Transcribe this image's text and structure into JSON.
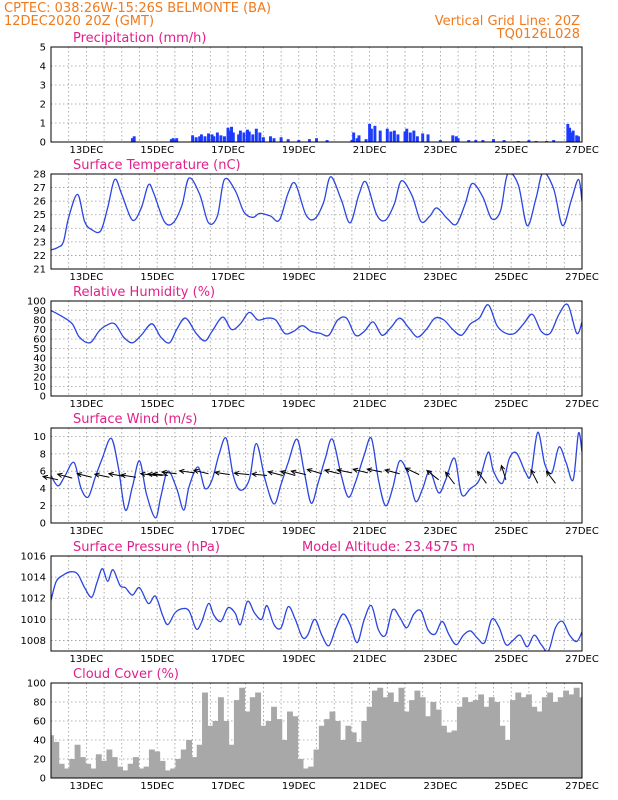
{
  "header": {
    "station": "CPTEC:   038:26W-15:26S   BELMONTE (BA)",
    "init_time": "12DEC2020 20Z (GMT)",
    "grid_note": "Vertical Grid Line: 20Z",
    "model_code": "TQ0126L028"
  },
  "colors": {
    "header": "#f07a1e",
    "panel_title": "#e0208a",
    "series_line": "#2b45e0",
    "precip_bar": "#1c3bff",
    "cloud_fill": "#a8a8a8"
  },
  "chart_data": [
    {
      "type": "bar",
      "title": "Precipitation (mm/h)",
      "x_range": [
        12.0,
        27.0
      ],
      "ylim": [
        0,
        5
      ],
      "yticks": [
        0,
        1,
        2,
        3,
        4,
        5
      ],
      "x_tick_labels": [
        "13DEC",
        "15DEC",
        "17DEC",
        "19DEC",
        "21DEC",
        "23DEC",
        "25DEC",
        "27DEC"
      ],
      "x": [
        14.3,
        14.35,
        15.4,
        15.45,
        15.5,
        15.55,
        16.0,
        16.1,
        16.2,
        16.25,
        16.35,
        16.45,
        16.55,
        16.6,
        16.7,
        16.8,
        16.9,
        17.0,
        17.05,
        17.1,
        17.15,
        17.3,
        17.35,
        17.45,
        17.55,
        17.6,
        17.7,
        17.8,
        17.9,
        18.0,
        18.2,
        18.3,
        18.5,
        18.7,
        19.0,
        19.3,
        19.5,
        19.8,
        20.5,
        20.55,
        20.65,
        20.7,
        20.9,
        21.0,
        21.05,
        21.15,
        21.3,
        21.5,
        21.6,
        21.7,
        21.8,
        22.0,
        22.05,
        22.15,
        22.25,
        22.35,
        22.5,
        22.65,
        23.0,
        23.35,
        23.45,
        23.5,
        23.8,
        24.0,
        24.2,
        24.5,
        24.8,
        25.2,
        25.5,
        25.7,
        26.0,
        26.2,
        26.6,
        26.65,
        26.7,
        26.75,
        26.85,
        26.9
      ],
      "values": [
        0.2,
        0.3,
        0.15,
        0.2,
        0.1,
        0.2,
        0.35,
        0.25,
        0.3,
        0.4,
        0.3,
        0.45,
        0.4,
        0.3,
        0.5,
        0.35,
        0.3,
        0.75,
        0.6,
        0.8,
        0.5,
        0.4,
        0.6,
        0.5,
        0.65,
        0.55,
        0.4,
        0.7,
        0.5,
        0.25,
        0.3,
        0.2,
        0.25,
        0.15,
        0.1,
        0.15,
        0.2,
        0.1,
        0.1,
        0.5,
        0.2,
        0.35,
        0.15,
        0.95,
        0.7,
        0.85,
        0.6,
        0.7,
        0.55,
        0.6,
        0.4,
        0.55,
        0.7,
        0.5,
        0.6,
        0.3,
        0.45,
        0.4,
        0.1,
        0.35,
        0.3,
        0.2,
        0.1,
        0.1,
        0.1,
        0.15,
        0.1,
        0.05,
        0.1,
        0.05,
        0.05,
        0.1,
        0.95,
        0.75,
        0.5,
        0.6,
        0.35,
        0.3
      ]
    },
    {
      "type": "line",
      "title": "Surface Temperature (nC)",
      "x_range": [
        12.0,
        27.0
      ],
      "ylim": [
        21,
        28
      ],
      "yticks": [
        21,
        22,
        23,
        24,
        25,
        26,
        27,
        28
      ],
      "x_tick_labels": [
        "13DEC",
        "15DEC",
        "17DEC",
        "19DEC",
        "21DEC",
        "23DEC",
        "25DEC",
        "27DEC"
      ],
      "x": [
        12.0,
        12.2,
        12.35,
        12.5,
        12.75,
        12.95,
        13.15,
        13.4,
        13.6,
        13.8,
        14.0,
        14.3,
        14.55,
        14.75,
        14.9,
        15.2,
        15.45,
        15.7,
        15.9,
        16.2,
        16.45,
        16.7,
        16.9,
        17.2,
        17.45,
        17.7,
        17.9,
        18.2,
        18.45,
        18.7,
        18.9,
        19.2,
        19.45,
        19.7,
        19.9,
        20.2,
        20.45,
        20.7,
        20.9,
        21.2,
        21.45,
        21.7,
        21.9,
        22.2,
        22.45,
        22.7,
        22.9,
        23.2,
        23.45,
        23.7,
        23.9,
        24.2,
        24.45,
        24.7,
        24.9,
        25.2,
        25.45,
        25.7,
        25.9,
        26.2,
        26.45,
        26.7,
        26.9,
        27.0
      ],
      "values": [
        22.4,
        22.6,
        23.0,
        24.8,
        26.5,
        24.5,
        23.9,
        23.8,
        25.5,
        27.6,
        26.5,
        24.6,
        25.5,
        27.2,
        26.6,
        24.5,
        24.4,
        25.7,
        27.7,
        26.5,
        24.4,
        24.9,
        27.6,
        26.8,
        25.2,
        24.8,
        25.1,
        24.9,
        24.6,
        26.6,
        27.3,
        25.0,
        24.7,
        25.9,
        27.8,
        26.1,
        24.4,
        26.5,
        27.4,
        25.0,
        24.6,
        25.8,
        27.5,
        26.4,
        24.5,
        24.9,
        25.5,
        24.7,
        24.3,
        25.8,
        27.3,
        26.3,
        24.7,
        25.3,
        28.0,
        27.2,
        24.2,
        26.2,
        28.1,
        26.9,
        24.2,
        26.1,
        27.6,
        26.0
      ]
    },
    {
      "type": "line",
      "title": "Relative Humidity (%)",
      "x_range": [
        12.0,
        27.0
      ],
      "ylim": [
        0,
        100
      ],
      "yticks": [
        0,
        10,
        20,
        30,
        40,
        50,
        60,
        70,
        80,
        90,
        100
      ],
      "x_tick_labels": [
        "13DEC",
        "15DEC",
        "17DEC",
        "19DEC",
        "21DEC",
        "23DEC",
        "25DEC",
        "27DEC"
      ],
      "x": [
        12.0,
        12.3,
        12.6,
        12.8,
        13.1,
        13.35,
        13.55,
        13.8,
        14.05,
        14.3,
        14.55,
        14.85,
        15.1,
        15.35,
        15.55,
        15.8,
        16.1,
        16.35,
        16.55,
        16.85,
        17.1,
        17.35,
        17.6,
        17.85,
        18.1,
        18.35,
        18.6,
        18.85,
        19.1,
        19.35,
        19.6,
        19.85,
        20.1,
        20.35,
        20.6,
        20.85,
        21.1,
        21.35,
        21.6,
        21.85,
        22.1,
        22.35,
        22.6,
        22.85,
        23.1,
        23.35,
        23.6,
        23.85,
        24.1,
        24.35,
        24.6,
        24.85,
        25.1,
        25.35,
        25.6,
        25.85,
        26.1,
        26.35,
        26.6,
        26.85,
        27.0
      ],
      "values": [
        90,
        84,
        76,
        62,
        56,
        68,
        74,
        76,
        62,
        56,
        64,
        76,
        62,
        56,
        70,
        82,
        66,
        58,
        68,
        83,
        70,
        76,
        88,
        80,
        82,
        80,
        66,
        68,
        74,
        68,
        66,
        64,
        80,
        82,
        64,
        68,
        78,
        64,
        72,
        82,
        72,
        62,
        70,
        82,
        80,
        70,
        64,
        76,
        82,
        96,
        74,
        66,
        66,
        76,
        86,
        68,
        66,
        86,
        96,
        66,
        78
      ]
    },
    {
      "type": "line",
      "title": "Surface Wind (m/s)",
      "x_range": [
        12.0,
        27.0
      ],
      "ylim": [
        0,
        11
      ],
      "yticks": [
        0,
        2,
        4,
        6,
        8,
        10
      ],
      "x_tick_labels": [
        "13DEC",
        "15DEC",
        "17DEC",
        "19DEC",
        "21DEC",
        "23DEC",
        "25DEC",
        "27DEC"
      ],
      "x": [
        12.0,
        12.2,
        12.4,
        12.65,
        12.85,
        13.05,
        13.25,
        13.45,
        13.7,
        13.9,
        14.1,
        14.3,
        14.5,
        14.7,
        14.95,
        15.1,
        15.3,
        15.55,
        15.75,
        15.9,
        16.15,
        16.35,
        16.55,
        16.75,
        16.95,
        17.15,
        17.35,
        17.6,
        17.8,
        18.05,
        18.3,
        18.5,
        18.7,
        18.95,
        19.15,
        19.35,
        19.55,
        19.75,
        19.95,
        20.2,
        20.4,
        20.6,
        20.85,
        21.05,
        21.25,
        21.45,
        21.65,
        21.85,
        22.1,
        22.3,
        22.5,
        22.7,
        22.95,
        23.15,
        23.4,
        23.6,
        23.85,
        24.1,
        24.35,
        24.5,
        24.75,
        24.95,
        25.15,
        25.4,
        25.55,
        25.75,
        25.95,
        26.15,
        26.35,
        26.55,
        26.75,
        26.9,
        27.0
      ],
      "values": [
        5.5,
        4.3,
        5.5,
        7.0,
        4.0,
        3.0,
        5.3,
        7.5,
        9.8,
        6.5,
        1.5,
        4.2,
        7.2,
        3.3,
        0.6,
        3.0,
        6.0,
        4.0,
        1.5,
        4.2,
        6.5,
        4.0,
        5.0,
        8.0,
        9.8,
        5.5,
        3.8,
        5.0,
        9.2,
        5.0,
        2.2,
        4.5,
        7.0,
        9.7,
        6.0,
        2.3,
        4.7,
        7.5,
        9.7,
        5.5,
        3.0,
        4.7,
        7.9,
        9.8,
        5.0,
        2.0,
        4.0,
        7.2,
        5.5,
        2.5,
        4.0,
        6.0,
        3.5,
        5.0,
        7.5,
        3.3,
        4.0,
        5.0,
        8.2,
        6.0,
        4.6,
        7.5,
        8.1,
        5.9,
        5.5,
        10.5,
        6.8,
        5.8,
        8.8,
        7.0,
        5.0,
        10.4,
        8.2
      ],
      "arrow_directions": [
        {
          "x": 12.2,
          "y": 5.0,
          "u": -1.0,
          "v": 0.22
        },
        {
          "x": 12.6,
          "y": 5.2,
          "u": -0.97,
          "v": 0.26
        },
        {
          "x": 13.15,
          "y": 5.3,
          "u": -0.97,
          "v": 0.24
        },
        {
          "x": 13.65,
          "y": 5.3,
          "u": -0.97,
          "v": 0.2
        },
        {
          "x": 14.05,
          "y": 5.4,
          "u": -0.98,
          "v": 0.18
        },
        {
          "x": 14.4,
          "y": 5.3,
          "u": -0.99,
          "v": 0.15
        },
        {
          "x": 14.95,
          "y": 5.5,
          "u": -0.98,
          "v": 0.12
        },
        {
          "x": 15.15,
          "y": 5.5,
          "u": -0.98,
          "v": 0.1
        },
        {
          "x": 15.3,
          "y": 5.5,
          "u": -0.98,
          "v": 0.12
        },
        {
          "x": 15.55,
          "y": 5.7,
          "u": -0.98,
          "v": 0.12
        },
        {
          "x": 16.05,
          "y": 5.8,
          "u": -0.98,
          "v": 0.14
        },
        {
          "x": 16.45,
          "y": 5.7,
          "u": -0.97,
          "v": 0.23
        },
        {
          "x": 17.05,
          "y": 5.6,
          "u": -0.98,
          "v": 0.15
        },
        {
          "x": 17.6,
          "y": 5.6,
          "u": -0.99,
          "v": 0.1
        },
        {
          "x": 18.1,
          "y": 5.5,
          "u": -0.99,
          "v": 0.1
        },
        {
          "x": 18.55,
          "y": 5.5,
          "u": -0.97,
          "v": 0.25
        },
        {
          "x": 18.9,
          "y": 5.5,
          "u": -0.96,
          "v": 0.28
        },
        {
          "x": 19.2,
          "y": 5.6,
          "u": -0.97,
          "v": 0.23
        },
        {
          "x": 19.65,
          "y": 5.7,
          "u": -0.96,
          "v": 0.29
        },
        {
          "x": 20.15,
          "y": 5.7,
          "u": -0.97,
          "v": 0.24
        },
        {
          "x": 20.5,
          "y": 5.8,
          "u": -0.98,
          "v": 0.2
        },
        {
          "x": 20.95,
          "y": 5.8,
          "u": -0.97,
          "v": 0.24
        },
        {
          "x": 21.35,
          "y": 5.9,
          "u": -0.98,
          "v": 0.2
        },
        {
          "x": 21.85,
          "y": 5.7,
          "u": -0.97,
          "v": 0.25
        },
        {
          "x": 22.4,
          "y": 5.6,
          "u": -0.9,
          "v": 0.43
        },
        {
          "x": 22.95,
          "y": 5.0,
          "u": -0.78,
          "v": 0.62
        },
        {
          "x": 23.4,
          "y": 4.5,
          "u": -0.6,
          "v": 0.8
        },
        {
          "x": 24.3,
          "y": 4.6,
          "u": -0.6,
          "v": 0.8
        },
        {
          "x": 24.85,
          "y": 5.0,
          "u": -0.3,
          "v": 0.95
        },
        {
          "x": 25.75,
          "y": 4.6,
          "u": -0.45,
          "v": 0.89
        },
        {
          "x": 26.25,
          "y": 4.6,
          "u": -0.6,
          "v": 0.8
        }
      ]
    },
    {
      "type": "line",
      "title": "Surface Pressure (hPa)",
      "subtitle": "Model Altitude: 23.4575 m",
      "x_range": [
        12.0,
        27.0
      ],
      "ylim": [
        1007,
        1016
      ],
      "yticks": [
        1008,
        1010,
        1012,
        1014,
        1016
      ],
      "x_tick_labels": [
        "13DEC",
        "15DEC",
        "17DEC",
        "19DEC",
        "21DEC",
        "23DEC",
        "25DEC",
        "27DEC"
      ],
      "x": [
        12.0,
        12.15,
        12.35,
        12.55,
        12.75,
        12.95,
        13.15,
        13.3,
        13.45,
        13.6,
        13.75,
        13.95,
        14.1,
        14.3,
        14.5,
        14.75,
        14.95,
        15.15,
        15.3,
        15.5,
        15.7,
        15.9,
        16.1,
        16.25,
        16.45,
        16.6,
        16.8,
        17.0,
        17.2,
        17.35,
        17.55,
        17.75,
        17.95,
        18.1,
        18.3,
        18.5,
        18.7,
        18.9,
        19.1,
        19.25,
        19.45,
        19.65,
        19.85,
        20.05,
        20.25,
        20.45,
        20.65,
        20.85,
        21.05,
        21.25,
        21.45,
        21.65,
        21.85,
        22.05,
        22.25,
        22.45,
        22.65,
        22.85,
        23.05,
        23.25,
        23.45,
        23.65,
        23.85,
        24.05,
        24.25,
        24.45,
        24.65,
        24.85,
        25.05,
        25.25,
        25.45,
        25.65,
        25.85,
        26.05,
        26.25,
        26.45,
        26.65,
        26.85,
        27.0
      ],
      "values": [
        1011.8,
        1013.6,
        1014.2,
        1014.5,
        1014.3,
        1013.0,
        1012.1,
        1013.5,
        1014.8,
        1013.6,
        1014.7,
        1013.2,
        1013.0,
        1012.3,
        1013.0,
        1011.5,
        1012.2,
        1010.4,
        1009.5,
        1010.6,
        1011.0,
        1010.8,
        1009.1,
        1009.7,
        1011.5,
        1010.4,
        1009.8,
        1011.1,
        1010.6,
        1009.5,
        1011.7,
        1010.6,
        1010.0,
        1011.3,
        1009.5,
        1009.2,
        1011.2,
        1010.0,
        1008.3,
        1008.5,
        1010.0,
        1008.5,
        1007.5,
        1009.2,
        1010.5,
        1009.5,
        1007.8,
        1010.0,
        1011.3,
        1009.0,
        1008.5,
        1010.9,
        1010.2,
        1009.2,
        1010.5,
        1010.8,
        1009.0,
        1008.6,
        1009.8,
        1008.5,
        1007.6,
        1008.5,
        1008.9,
        1008.2,
        1007.8,
        1010.0,
        1009.3,
        1007.6,
        1008.0,
        1008.5,
        1007.4,
        1008.5,
        1007.6,
        1007.0,
        1009.2,
        1009.8,
        1008.5,
        1007.9,
        1008.8
      ]
    },
    {
      "type": "area",
      "title": "Cloud Cover (%)",
      "x_range": [
        12.0,
        27.0
      ],
      "ylim": [
        0,
        100
      ],
      "yticks": [
        0,
        20,
        40,
        60,
        80,
        100
      ],
      "x_tick_labels": [
        "13DEC",
        "15DEC",
        "17DEC",
        "19DEC",
        "21DEC",
        "23DEC",
        "25DEC",
        "27DEC"
      ],
      "x": [
        12.0,
        12.15,
        12.3,
        12.45,
        12.6,
        12.75,
        12.9,
        13.05,
        13.2,
        13.35,
        13.5,
        13.65,
        13.8,
        13.95,
        14.1,
        14.25,
        14.4,
        14.55,
        14.7,
        14.85,
        15.0,
        15.15,
        15.3,
        15.45,
        15.6,
        15.75,
        15.9,
        16.05,
        16.2,
        16.35,
        16.5,
        16.65,
        16.8,
        16.95,
        17.1,
        17.25,
        17.4,
        17.55,
        17.7,
        17.85,
        18.0,
        18.15,
        18.3,
        18.45,
        18.6,
        18.75,
        18.9,
        19.05,
        19.2,
        19.35,
        19.5,
        19.65,
        19.8,
        19.95,
        20.1,
        20.25,
        20.4,
        20.55,
        20.7,
        20.85,
        21.0,
        21.15,
        21.3,
        21.45,
        21.6,
        21.75,
        21.9,
        22.05,
        22.2,
        22.35,
        22.5,
        22.65,
        22.8,
        22.95,
        23.1,
        23.25,
        23.4,
        23.55,
        23.7,
        23.85,
        24.0,
        24.15,
        24.3,
        24.45,
        24.6,
        24.75,
        24.9,
        25.05,
        25.2,
        25.35,
        25.5,
        25.65,
        25.8,
        25.95,
        26.1,
        26.25,
        26.4,
        26.55,
        26.7,
        26.85,
        27.0
      ],
      "values": [
        45,
        38,
        15,
        10,
        20,
        35,
        22,
        15,
        10,
        25,
        18,
        30,
        22,
        12,
        8,
        15,
        22,
        10,
        12,
        30,
        28,
        18,
        8,
        10,
        20,
        30,
        40,
        22,
        35,
        90,
        55,
        60,
        85,
        60,
        35,
        82,
        95,
        70,
        85,
        90,
        55,
        60,
        75,
        62,
        40,
        70,
        65,
        20,
        10,
        12,
        30,
        55,
        62,
        70,
        60,
        40,
        55,
        48,
        38,
        60,
        75,
        92,
        95,
        85,
        90,
        80,
        95,
        70,
        82,
        92,
        85,
        65,
        80,
        72,
        55,
        48,
        50,
        75,
        85,
        80,
        82,
        88,
        75,
        85,
        80,
        55,
        40,
        82,
        90,
        85,
        88,
        75,
        70,
        85,
        90,
        80,
        85,
        92,
        88,
        95,
        85
      ]
    }
  ]
}
